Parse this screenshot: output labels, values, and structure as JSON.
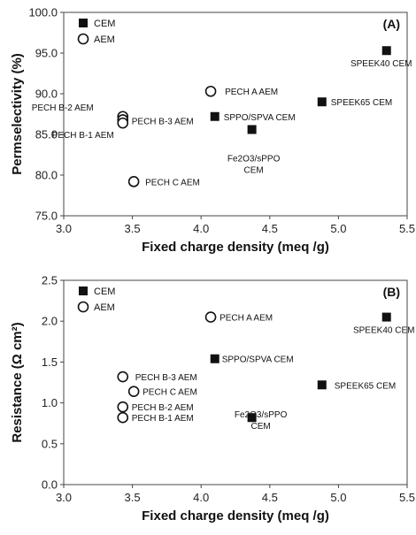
{
  "chart_data": [
    {
      "type": "scatter",
      "panel_label": "(A)",
      "xlabel": "Fixed charge density (meq /g)",
      "ylabel": "Permselectivity (%)",
      "xlim": [
        3.0,
        5.5
      ],
      "ylim": [
        75.0,
        100.0
      ],
      "xticks": [
        "3.0",
        "3.5",
        "4.0",
        "4.5",
        "5.0",
        "5.5"
      ],
      "yticks": [
        "75.0",
        "80.0",
        "85.0",
        "90.0",
        "95.0",
        "100.0"
      ],
      "legend_position": "top-left",
      "series": [
        {
          "name": "CEM",
          "marker": "filled-square",
          "points": [
            {
              "x": 4.1,
              "y": 87.2,
              "label": [
                "SPPO/SPVA CEM"
              ]
            },
            {
              "x": 4.37,
              "y": 85.6,
              "label": [
                "Fe2O3/sPPO",
                "CEM"
              ]
            },
            {
              "x": 4.88,
              "y": 89.0,
              "label": [
                "SPEEK65 CEM"
              ]
            },
            {
              "x": 5.35,
              "y": 95.3,
              "label": [
                "SPEEK40 CEM"
              ]
            }
          ]
        },
        {
          "name": "AEM",
          "marker": "open-circle",
          "points": [
            {
              "x": 3.43,
              "y": 87.2,
              "label": [
                "PECH B-2 AEM"
              ]
            },
            {
              "x": 3.43,
              "y": 86.8,
              "label": [
                "PECH B-3 AEM"
              ]
            },
            {
              "x": 3.43,
              "y": 86.4,
              "label": [
                "PECH B-1 AEM"
              ]
            },
            {
              "x": 4.07,
              "y": 90.3,
              "label": [
                "PECH A AEM"
              ]
            },
            {
              "x": 3.51,
              "y": 79.2,
              "label": [
                "PECH C AEM"
              ]
            }
          ]
        }
      ]
    },
    {
      "type": "scatter",
      "panel_label": "(B)",
      "xlabel": "Fixed charge density (meq /g)",
      "ylabel": "Resistance (Ω cm²)",
      "xlim": [
        3.0,
        5.5
      ],
      "ylim": [
        0.0,
        2.5
      ],
      "xticks": [
        "3.0",
        "3.5",
        "4.0",
        "4.5",
        "5.0",
        "5.5"
      ],
      "yticks": [
        "0.0",
        "0.5",
        "1.0",
        "1.5",
        "2.0",
        "2.5"
      ],
      "legend_position": "top-left",
      "series": [
        {
          "name": "CEM",
          "marker": "filled-square",
          "points": [
            {
              "x": 4.1,
              "y": 1.54,
              "label": [
                "SPPO/SPVA CEM"
              ]
            },
            {
              "x": 4.37,
              "y": 0.82,
              "label": [
                "Fe2O3/sPPO",
                "CEM"
              ]
            },
            {
              "x": 4.88,
              "y": 1.22,
              "label": [
                "SPEEK65 CEM"
              ]
            },
            {
              "x": 5.35,
              "y": 2.05,
              "label": [
                "SPEEK40 CEM"
              ]
            }
          ]
        },
        {
          "name": "AEM",
          "marker": "open-circle",
          "points": [
            {
              "x": 4.07,
              "y": 2.05,
              "label": [
                "PECH A AEM"
              ]
            },
            {
              "x": 3.43,
              "y": 1.32,
              "label": [
                "PECH B-3 AEM"
              ]
            },
            {
              "x": 3.51,
              "y": 1.14,
              "label": [
                "PECH C AEM"
              ]
            },
            {
              "x": 3.43,
              "y": 0.95,
              "label": [
                "PECH B-2 AEM"
              ]
            },
            {
              "x": 3.43,
              "y": 0.82,
              "label": [
                "PECH B-1 AEM"
              ]
            }
          ]
        }
      ]
    }
  ]
}
